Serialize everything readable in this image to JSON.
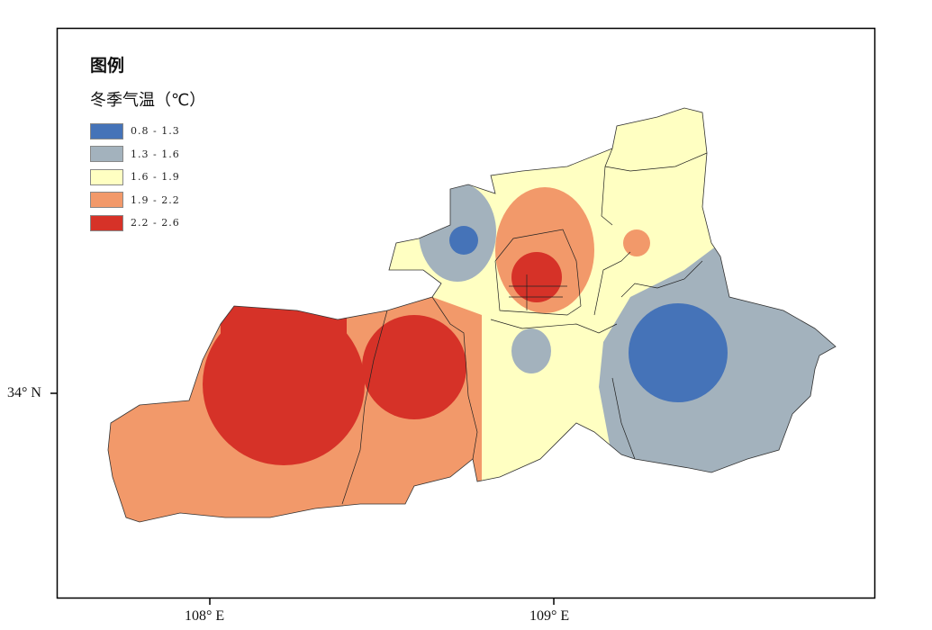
{
  "legend": {
    "title": "图例",
    "subtitle": "冬季气温（℃）",
    "items": [
      {
        "label": "0.8 - 1.3",
        "color": "#4573b8"
      },
      {
        "label": "1.3 - 1.6",
        "color": "#a3b2bd"
      },
      {
        "label": "1.6 - 1.9",
        "color": "#ffffc2"
      },
      {
        "label": "1.9 - 2.2",
        "color": "#f2996a"
      },
      {
        "label": "2.2 - 2.6",
        "color": "#d63228"
      }
    ]
  },
  "axes": {
    "x_ticks": [
      "108° E",
      "109° E"
    ],
    "y_ticks": [
      "34° N"
    ]
  }
}
